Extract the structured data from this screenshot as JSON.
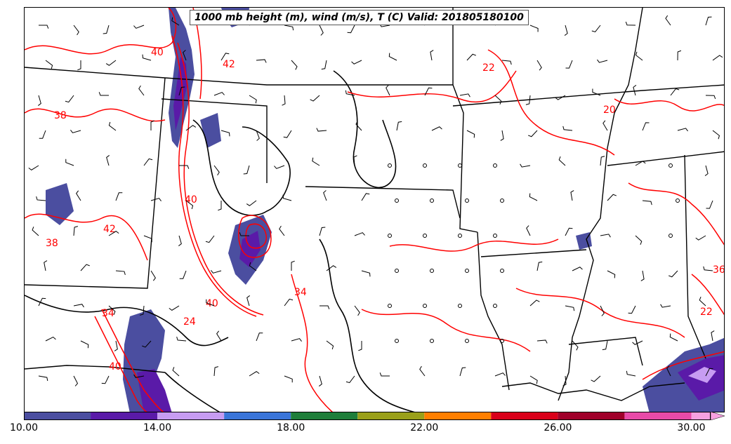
{
  "title": "1000 mb height (m), wind (m/s), T (C) Valid: 201805180100",
  "colors": {
    "temperature_contour": "#ff0000",
    "height_contour": "#000000",
    "boundaries": "#000000"
  },
  "colorbar": {
    "bins": [
      {
        "from": 10,
        "to": 12,
        "color": "#4b4ea0"
      },
      {
        "from": 12,
        "to": 14,
        "color": "#5a1aa8"
      },
      {
        "from": 14,
        "to": 16,
        "color": "#c79cf2"
      },
      {
        "from": 16,
        "to": 18,
        "color": "#3a75d9"
      },
      {
        "from": 18,
        "to": 20,
        "color": "#1e7e3a"
      },
      {
        "from": 20,
        "to": 22,
        "color": "#9aa01a"
      },
      {
        "from": 22,
        "to": 24,
        "color": "#ff7f00"
      },
      {
        "from": 24,
        "to": 26,
        "color": "#d9001a"
      },
      {
        "from": 26,
        "to": 28,
        "color": "#a0002a"
      },
      {
        "from": 28,
        "to": 30,
        "color": "#e84aa8"
      },
      {
        "from": 30,
        "to": 32,
        "color": "#f7a0e0"
      }
    ],
    "tick_labels": [
      "10.00",
      "14.00",
      "18.00",
      "22.00",
      "26.00",
      "30.00"
    ],
    "tick_values": [
      10,
      14,
      18,
      22,
      26,
      30
    ],
    "range": [
      10,
      31
    ]
  },
  "contour_labels": [
    "40",
    "42",
    "38",
    "40",
    "42",
    "38",
    "40",
    "34",
    "24",
    "40",
    "22",
    "20",
    "22",
    "36",
    "34"
  ]
}
